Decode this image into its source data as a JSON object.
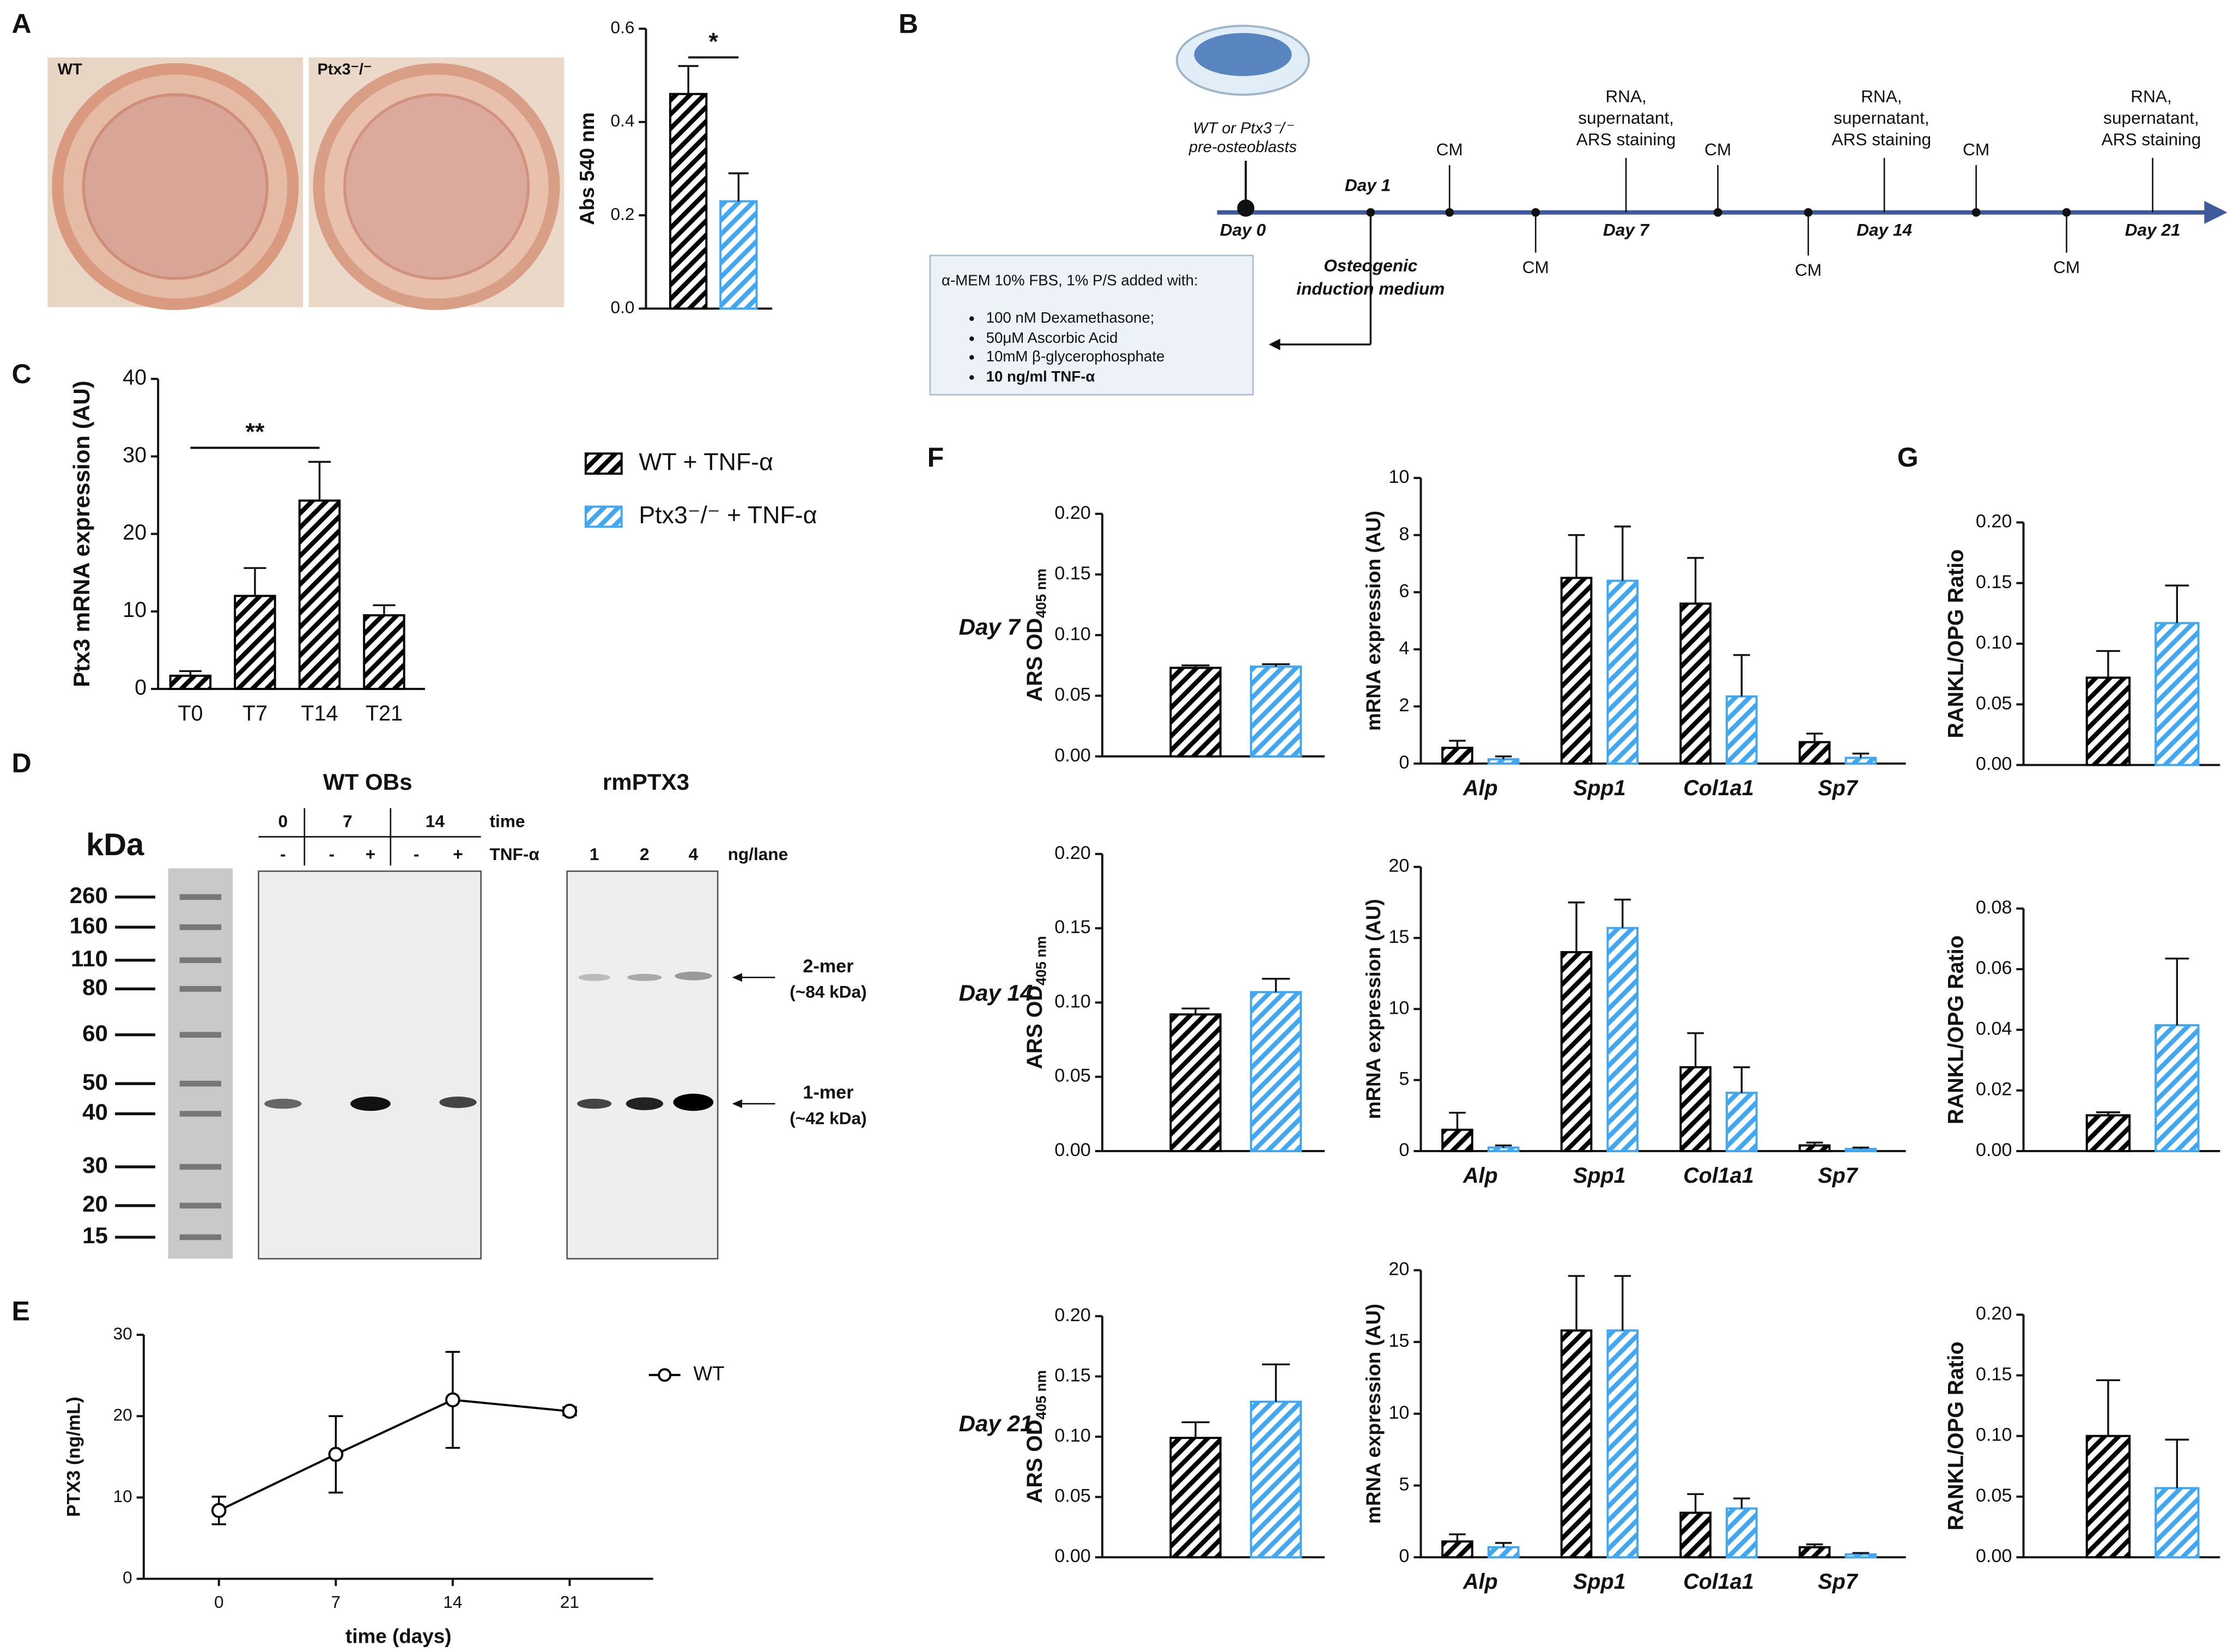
{
  "panels": [
    "A",
    "B",
    "C",
    "D",
    "E",
    "F",
    "G"
  ],
  "row_labels": [
    "Day 7",
    "Day 14",
    "Day 21"
  ],
  "photos": [
    "WT",
    "Ptx3⁻/⁻"
  ],
  "diagram": {
    "cells_label": [
      "WT or Ptx3⁻/⁻",
      "pre-osteoblasts"
    ],
    "days": [
      "Day 0",
      "Day 1",
      "Day 7",
      "Day 14",
      "Day 21"
    ],
    "cm": [
      "CM",
      "CM",
      "CM",
      "CM",
      "CM",
      "CM"
    ],
    "harvest": [
      [
        "RNA,",
        "supernatant,",
        "ARS staining"
      ],
      [
        "RNA,",
        "supernatant,",
        "ARS staining"
      ],
      [
        "RNA,",
        "supernatant,",
        "ARS staining"
      ]
    ],
    "medium_label": [
      "Osteogenic",
      "induction medium"
    ],
    "box_header": "α-MEM 10% FBS, 1% P/S added with:",
    "box_items": [
      "100 nM Dexamethasone;",
      "50μM Ascorbic Acid",
      "10mM β-glycerophosphate",
      "10 ng/ml TNF-α"
    ]
  },
  "blot": {
    "titles": [
      "WT OBs",
      "rmPTX3"
    ],
    "kda": "kDa",
    "ladder": [
      "260",
      "160",
      "110",
      "80",
      "60",
      "50",
      "40",
      "30",
      "20",
      "15"
    ],
    "time_labels": [
      "0",
      "7",
      "14"
    ],
    "time": "time",
    "tnf_labels": [
      "-",
      "-",
      "+",
      "-",
      "+"
    ],
    "tnf": "TNF-α",
    "ng_labels": [
      "1",
      "2",
      "4"
    ],
    "ng": "ng/lane",
    "markers": [
      [
        "2-mer",
        "(~84 kDa)"
      ],
      [
        "1-mer",
        "(~42 kDa)"
      ]
    ]
  },
  "chart_data": [
    {
      "type": "bar",
      "ylabel": "Abs 540 nm",
      "categories": [
        null,
        null
      ],
      "series": [
        {
          "color": "#000000",
          "values": [
            0.46,
            null
          ],
          "errors": [
            0.06,
            null
          ]
        },
        {
          "color": "#41a7f0",
          "values": [
            null,
            0.23
          ],
          "errors": [
            null,
            0.06
          ]
        }
      ],
      "ylim": [
        0,
        0.6
      ],
      "yticks": [
        {
          "value": 0,
          "label": "0.0"
        },
        0.2,
        0.4,
        0.6
      ],
      "annotations": [
        "*"
      ]
    },
    {
      "type": "bar",
      "ylabel": "Ptx3 mRNA expression (AU)",
      "categories": [
        "T0",
        "T7",
        "T14",
        "T21"
      ],
      "series": [
        {
          "name": "WT + TNF-α",
          "color": "#000000",
          "values": [
            1.7,
            12,
            24.3,
            9.5
          ],
          "errors": [
            0.6,
            3.6,
            5,
            1.3
          ]
        },
        {
          "name": "Ptx3⁻/⁻ + TNF-α",
          "color": "#41a7f0",
          "values": [
            null,
            null,
            null,
            null
          ],
          "errors": [
            null,
            null,
            null,
            null
          ]
        }
      ],
      "ylim": [
        0,
        40
      ],
      "yticks": [
        0,
        10,
        20,
        30,
        40
      ],
      "annotations": [
        "**"
      ]
    },
    {
      "type": "line",
      "xlabel": "time (days)",
      "ylabel": "PTX3 (ng/mL)",
      "x": [
        0,
        7,
        14,
        21
      ],
      "series": [
        {
          "name": "WT",
          "color": "#000000",
          "values": [
            8.4,
            15.3,
            22,
            20.6
          ],
          "errors": [
            1.7,
            4.7,
            5.9,
            0.5
          ]
        }
      ],
      "xlim": [
        -4.5,
        26
      ],
      "xticks": [
        0,
        7,
        14,
        21
      ],
      "ylim": [
        0,
        30
      ],
      "yticks": [
        0,
        10,
        20,
        30
      ]
    },
    {
      "type": "bar",
      "ylabel": "ARS OD",
      "ylabel_sub": "405 nm",
      "categories": [
        null,
        null
      ],
      "series": [
        {
          "color": "#000000",
          "values": [
            0.073,
            null
          ],
          "errors": [
            0.002,
            null
          ]
        },
        {
          "color": "#41a7f0",
          "values": [
            null,
            0.074
          ],
          "errors": [
            null,
            0.002
          ]
        }
      ],
      "ylim": [
        0,
        0.2
      ],
      "yticks": [
        {
          "value": 0,
          "label": "0.00"
        },
        0.05,
        {
          "value": 0.1,
          "label": "0.10"
        },
        0.15,
        {
          "value": 0.2,
          "label": "0.20"
        }
      ]
    },
    {
      "type": "bar",
      "ylabel": "mRNA expression (AU)",
      "categories": [
        "Alp",
        "Spp1",
        "Col1a1",
        "Sp7"
      ],
      "series": [
        {
          "color": "#000000",
          "values": [
            0.55,
            6.5,
            5.6,
            0.75
          ],
          "errors": [
            0.25,
            1.5,
            1.6,
            0.3
          ]
        },
        {
          "color": "#41a7f0",
          "values": [
            0.15,
            6.4,
            2.35,
            0.2
          ],
          "errors": [
            0.1,
            1.9,
            1.45,
            0.15
          ]
        }
      ],
      "ylim": [
        0,
        10
      ],
      "yticks": [
        0,
        2,
        4,
        6,
        8,
        10
      ]
    },
    {
      "type": "bar",
      "ylabel": "RANKL/OPG Ratio",
      "categories": [
        null,
        null
      ],
      "series": [
        {
          "color": "#000000",
          "values": [
            0.072,
            null
          ],
          "errors": [
            0.022,
            null
          ]
        },
        {
          "color": "#41a7f0",
          "values": [
            null,
            0.117
          ],
          "errors": [
            null,
            0.031
          ]
        }
      ],
      "ylim": [
        0,
        0.2
      ],
      "yticks": [
        {
          "value": 0,
          "label": "0.00"
        },
        0.05,
        {
          "value": 0.1,
          "label": "0.10"
        },
        0.15,
        {
          "value": 0.2,
          "label": "0.20"
        }
      ]
    },
    {
      "type": "bar",
      "ylabel": "ARS OD",
      "ylabel_sub": "405 nm",
      "categories": [
        null,
        null
      ],
      "series": [
        {
          "color": "#000000",
          "values": [
            0.092,
            null
          ],
          "errors": [
            0.004,
            null
          ]
        },
        {
          "color": "#41a7f0",
          "values": [
            null,
            0.107
          ],
          "errors": [
            null,
            0.009
          ]
        }
      ],
      "ylim": [
        0,
        0.2
      ],
      "yticks": [
        {
          "value": 0,
          "label": "0.00"
        },
        0.05,
        {
          "value": 0.1,
          "label": "0.10"
        },
        0.15,
        {
          "value": 0.2,
          "label": "0.20"
        }
      ]
    },
    {
      "type": "bar",
      "ylabel": "mRNA expression (AU)",
      "categories": [
        "Alp",
        "Spp1",
        "Col1a1",
        "Sp7"
      ],
      "series": [
        {
          "color": "#000000",
          "values": [
            1.5,
            14,
            5.9,
            0.4
          ],
          "errors": [
            1.2,
            3.5,
            2.4,
            0.2
          ]
        },
        {
          "color": "#41a7f0",
          "values": [
            0.25,
            15.7,
            4.1,
            0.15
          ],
          "errors": [
            0.15,
            2,
            1.8,
            0.1
          ]
        }
      ],
      "ylim": [
        0,
        20
      ],
      "yticks": [
        0,
        5,
        10,
        15,
        20
      ]
    },
    {
      "type": "bar",
      "ylabel": "RANKL/OPG Ratio",
      "categories": [
        null,
        null
      ],
      "series": [
        {
          "color": "#000000",
          "values": [
            0.0118,
            null
          ],
          "errors": [
            0.001,
            null
          ]
        },
        {
          "color": "#41a7f0",
          "values": [
            null,
            0.0415
          ],
          "errors": [
            null,
            0.022
          ]
        }
      ],
      "ylim": [
        0,
        0.08
      ],
      "yticks": [
        {
          "value": 0,
          "label": "0.00"
        },
        0.02,
        0.04,
        0.06,
        0.08
      ]
    },
    {
      "type": "bar",
      "ylabel": "ARS OD",
      "ylabel_sub": "405 nm",
      "categories": [
        null,
        null
      ],
      "series": [
        {
          "color": "#000000",
          "values": [
            0.099,
            null
          ],
          "errors": [
            0.013,
            null
          ]
        },
        {
          "color": "#41a7f0",
          "values": [
            null,
            0.129
          ],
          "errors": [
            null,
            0.031
          ]
        }
      ],
      "ylim": [
        0,
        0.2
      ],
      "yticks": [
        {
          "value": 0,
          "label": "0.00"
        },
        0.05,
        {
          "value": 0.1,
          "label": "0.10"
        },
        0.15,
        {
          "value": 0.2,
          "label": "0.20"
        }
      ]
    },
    {
      "type": "bar",
      "ylabel": "mRNA expression (AU)",
      "categories": [
        "Alp",
        "Spp1",
        "Col1a1",
        "Sp7"
      ],
      "series": [
        {
          "color": "#000000",
          "values": [
            1.1,
            15.8,
            3.1,
            0.7
          ],
          "errors": [
            0.5,
            3.8,
            1.3,
            0.2
          ]
        },
        {
          "color": "#41a7f0",
          "values": [
            0.7,
            15.8,
            3.4,
            0.2
          ],
          "errors": [
            0.3,
            3.8,
            0.7,
            0.1
          ]
        }
      ],
      "ylim": [
        0,
        20
      ],
      "yticks": [
        0,
        5,
        10,
        15,
        20
      ]
    },
    {
      "type": "bar",
      "ylabel": "RANKL/OPG Ratio",
      "categories": [
        null,
        null
      ],
      "series": [
        {
          "color": "#000000",
          "values": [
            0.1,
            null
          ],
          "errors": [
            0.046,
            null
          ]
        },
        {
          "color": "#41a7f0",
          "values": [
            null,
            0.057
          ],
          "errors": [
            null,
            0.04
          ]
        }
      ],
      "ylim": [
        0,
        0.2
      ],
      "yticks": [
        {
          "value": 0,
          "label": "0.00"
        },
        0.05,
        {
          "value": 0.1,
          "label": "0.10"
        },
        0.15,
        {
          "value": 0.2,
          "label": "0.20"
        }
      ]
    }
  ]
}
